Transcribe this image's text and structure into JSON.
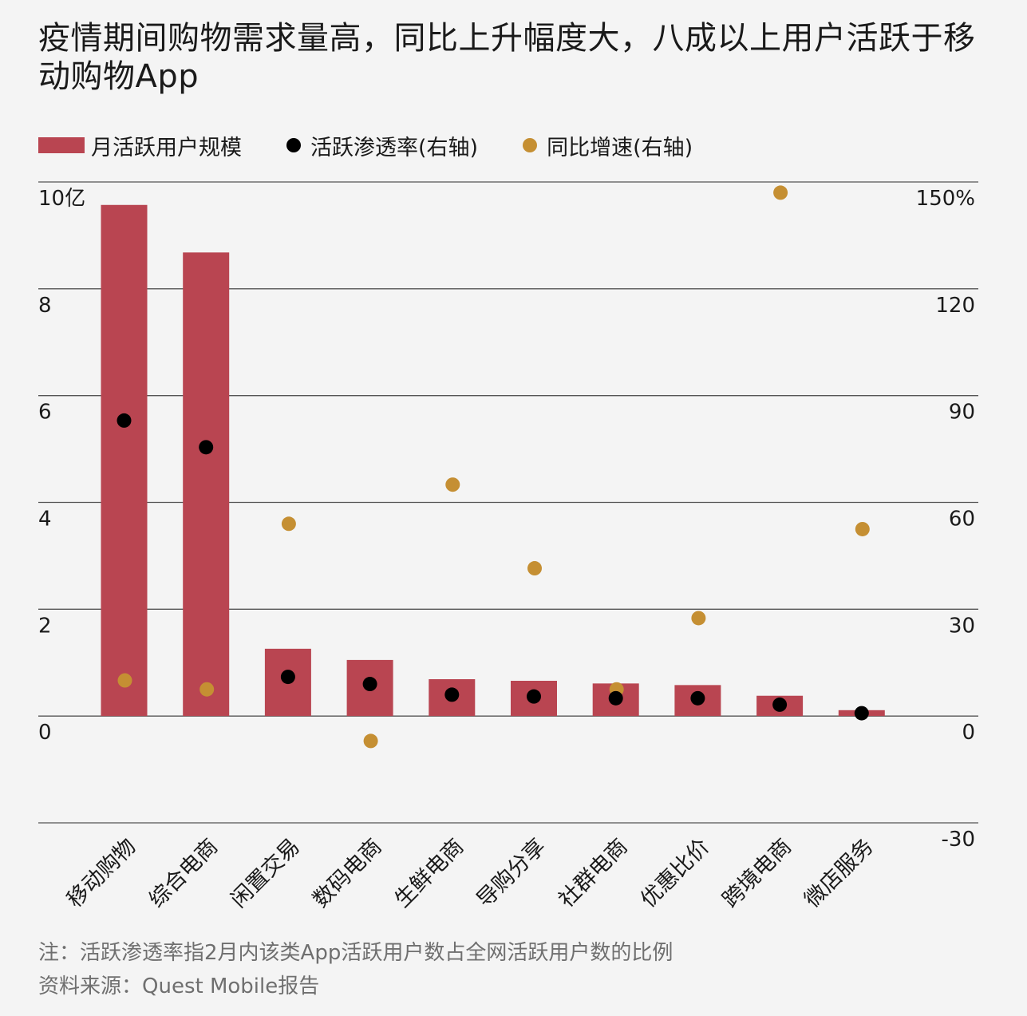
{
  "title": "疫情期间购物需求量高，同比上升幅度大，八成以上用户活跃于移动购物App",
  "legend": {
    "bar": "月活跃用户规模",
    "penetration": "活跃渗透率(右轴)",
    "growth": "同比增速(右轴)"
  },
  "colors": {
    "bar": "#b94551",
    "penetration": "#000000",
    "growth": "#c58f33",
    "grid": "#555555",
    "background": "#f4f4f4"
  },
  "notes": {
    "note": "注：活跃渗透率指2月内该类App活跃用户数占全网活跃用户数的比例",
    "source": "资料来源：Quest Mobile报告"
  },
  "chart_data": {
    "type": "bar",
    "categories": [
      "移动购物",
      "综合电商",
      "闲置交易",
      "数码电商",
      "生鲜电商",
      "导购分享",
      "社群电商",
      "优惠比价",
      "跨境电商",
      "微店服务"
    ],
    "series": [
      {
        "name": "月活跃用户规模",
        "axis": "left",
        "type": "bar",
        "values": [
          9.57,
          8.68,
          1.26,
          1.05,
          0.69,
          0.66,
          0.61,
          0.58,
          0.38,
          0.11
        ]
      },
      {
        "name": "活跃渗透率(右轴)",
        "axis": "right",
        "type": "scatter",
        "values": [
          83,
          75.5,
          11,
          9,
          6,
          5.5,
          5,
          5,
          3.2,
          0.8
        ]
      },
      {
        "name": "同比增速(右轴)",
        "axis": "right",
        "type": "scatter",
        "values": [
          10,
          7.5,
          54,
          -7,
          65,
          41.5,
          7.5,
          27.5,
          147,
          52.5
        ]
      }
    ],
    "left_axis": {
      "ticks": [
        "10亿",
        "8",
        "6",
        "4",
        "2",
        "0"
      ],
      "tick_values": [
        10,
        8,
        6,
        4,
        2,
        0
      ],
      "range": [
        -2,
        10
      ]
    },
    "right_axis": {
      "ticks": [
        "150%",
        "120",
        "90",
        "60",
        "30",
        "0",
        "-30"
      ],
      "tick_values": [
        150,
        120,
        90,
        60,
        30,
        0,
        -30
      ],
      "range": [
        -30,
        150
      ]
    },
    "grid": true,
    "legend_position": "top-left"
  }
}
